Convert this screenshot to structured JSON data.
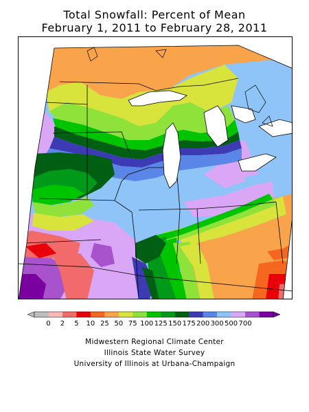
{
  "title": {
    "line1": "Total Snowfall: Percent of Mean",
    "line2": "February 1, 2011 to February 28, 2011"
  },
  "legend": {
    "ticks": [
      "0",
      "2",
      "5",
      "10",
      "25",
      "50",
      "75",
      "100",
      "125",
      "150",
      "175",
      "200",
      "300",
      "500",
      "700"
    ],
    "colors": [
      "#bdbdbd",
      "#f9b8b8",
      "#f26b6b",
      "#e8000b",
      "#f5661e",
      "#f9a44a",
      "#d8e33b",
      "#8ee23a",
      "#00c400",
      "#00991a",
      "#005f12",
      "#3d3bb3",
      "#5a86e8",
      "#8fc4f8",
      "#d9a7f5",
      "#a852cc",
      "#7b00a0"
    ]
  },
  "credits": {
    "line1": "Midwestern Regional Climate Center",
    "line2": "Illinois State Water Survey",
    "line3": "University of Illinois at Urbana-Champaign"
  }
}
